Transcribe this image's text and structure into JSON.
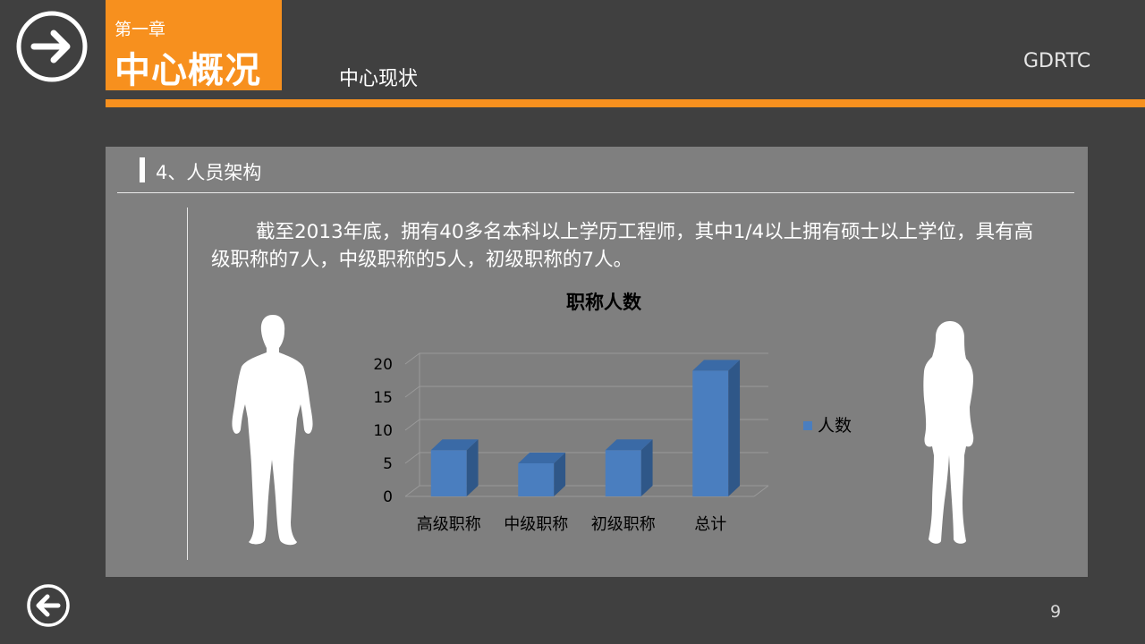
{
  "header": {
    "chapter_label": "第一章",
    "chapter_title": "中心概况",
    "section_title": "中心现状",
    "brand": "GDRTC"
  },
  "panel": {
    "heading": "4、人员架构",
    "paragraph": "截至2013年底，拥有40多名本科以上学历工程师，其中1/4以上拥有硕士以上学位，具有高级职称的7人，中级职称的5人，初级职称的7人。"
  },
  "footer": {
    "page_number": "9"
  },
  "colors": {
    "accent": "#f7901e",
    "background": "#404040",
    "panel": "#7f7f7f",
    "bar_front": "#4a7ebf",
    "bar_side": "#2f5788",
    "bar_top": "#3a6aa6"
  },
  "icons": {
    "top_left": "arrow-right-circle-icon",
    "bottom_left": "arrow-left-circle-icon",
    "left_figure": "man-silhouette-icon",
    "right_figure": "woman-silhouette-icon"
  },
  "chart_data": {
    "type": "bar",
    "title": "职称人数",
    "categories": [
      "高级职称",
      "中级职称",
      "初级职称",
      "总计"
    ],
    "series": [
      {
        "name": "人数",
        "values": [
          7,
          5,
          7,
          19
        ]
      }
    ],
    "ylim": [
      0,
      20
    ],
    "yticks": [
      0,
      5,
      10,
      15,
      20
    ],
    "legend": "right",
    "grid": true,
    "style": "3d-column"
  }
}
